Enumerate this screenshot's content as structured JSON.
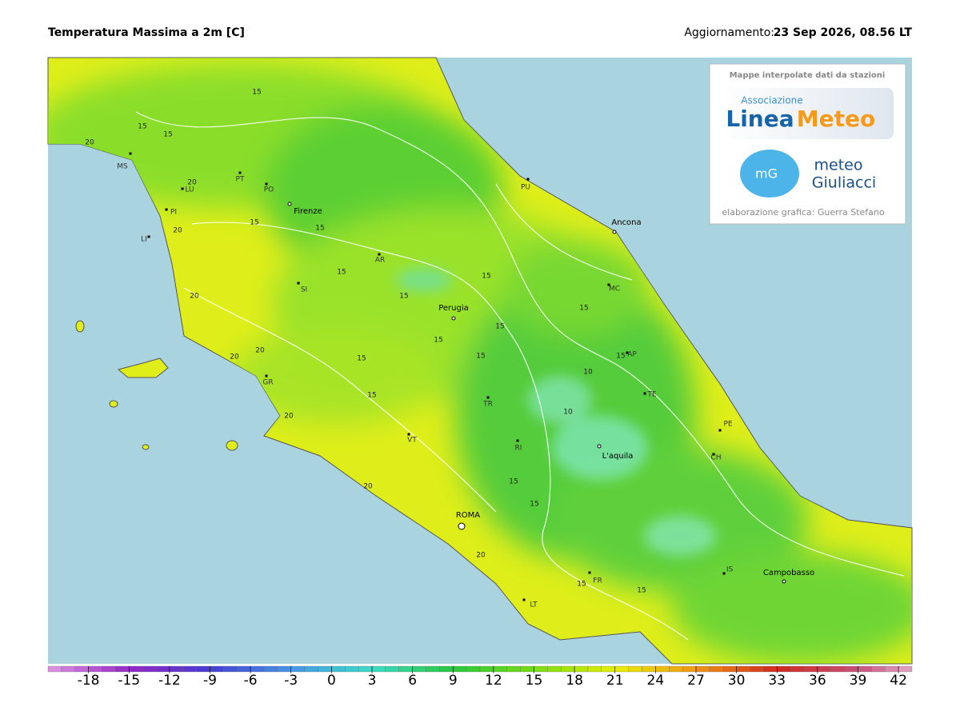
{
  "header": {
    "title": "Temperatura Massima a 2m [C]",
    "update_label": "Aggiornamento:",
    "update_value": "23 Sep 2026, 08.56 LT"
  },
  "logo_box": {
    "caption": "Mappe interpolate dati da stazioni",
    "logo1_top": "Associazione",
    "logo1_word1": "Linea",
    "logo1_word2": "Meteo",
    "logo2_badge": "mG",
    "logo2_line1": "meteo",
    "logo2_line2": "Giuliacci",
    "credit": "elaborazione grafica: Guerra Stefano"
  },
  "cities": [
    "Firenze",
    "Ancona",
    "Perugia",
    "L'aquila",
    "ROMA",
    "Campobasso"
  ],
  "provinces": [
    "MS",
    "LU",
    "PT",
    "PO",
    "PI",
    "LI",
    "SI",
    "AR",
    "GR",
    "VT",
    "RI",
    "TR",
    "MC",
    "AP",
    "TE",
    "PE",
    "CH",
    "IS",
    "FR",
    "LT",
    "PU"
  ],
  "contour_labels": [
    15,
    15,
    20,
    15,
    20,
    15,
    15,
    20,
    15,
    20,
    15,
    15,
    20,
    15,
    20,
    15,
    15,
    15,
    15,
    20,
    15,
    10,
    10,
    15,
    20,
    15,
    15,
    15,
    20,
    15
  ],
  "colorbar": {
    "range": [
      -21,
      43
    ],
    "ticks": [
      -18,
      -15,
      -12,
      -9,
      -6,
      -3,
      0,
      3,
      6,
      9,
      12,
      15,
      18,
      21,
      24,
      27,
      30,
      33,
      36,
      39,
      42
    ]
  }
}
